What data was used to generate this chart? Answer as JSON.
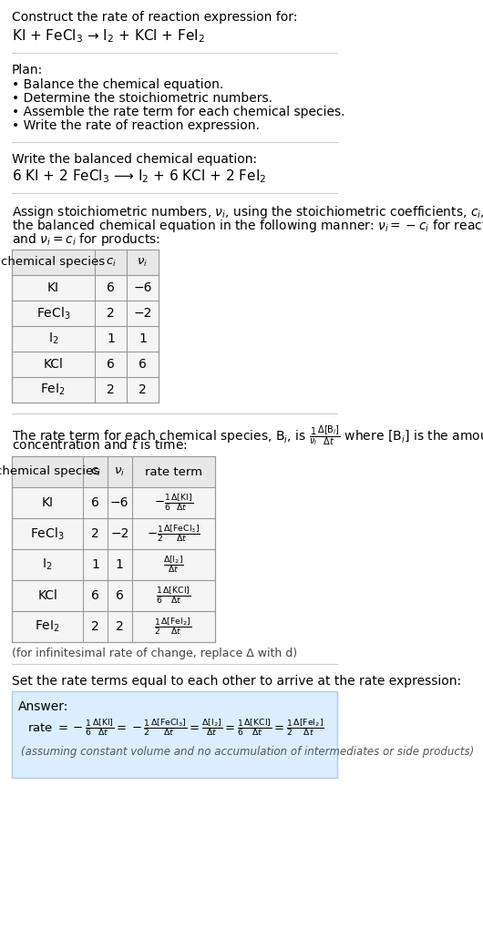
{
  "title_line1": "Construct the rate of reaction expression for:",
  "title_line2": "KI + FeCl$_3$ → I$_2$ + KCl + FeI$_2$",
  "plan_header": "Plan:",
  "plan_items": [
    "• Balance the chemical equation.",
    "• Determine the stoichiometric numbers.",
    "• Assemble the rate term for each chemical species.",
    "• Write the rate of reaction expression."
  ],
  "balanced_header": "Write the balanced chemical equation:",
  "balanced_eq": "6 KI + 2 FeCl$_3$ ⟶ I$_2$ + 6 KCl + 2 FeI$_2$",
  "stoich_intro": "Assign stoichiometric numbers, $\\nu_i$, using the stoichiometric coefficients, $c_i$, from\nthe balanced chemical equation in the following manner: $\\nu_i = -c_i$ for reactants\nand $\\nu_i = c_i$ for products:",
  "table1_headers": [
    "chemical species",
    "$c_i$",
    "$\\nu_i$"
  ],
  "table1_rows": [
    [
      "KI",
      "6",
      "−6"
    ],
    [
      "FeCl$_3$",
      "2",
      "−2"
    ],
    [
      "I$_2$",
      "1",
      "1"
    ],
    [
      "KCl",
      "6",
      "6"
    ],
    [
      "FeI$_2$",
      "2",
      "2"
    ]
  ],
  "rate_term_intro": "The rate term for each chemical species, B$_i$, is $\\frac{1}{\\nu_i}\\frac{\\Delta[\\mathrm{B}_i]}{\\Delta t}$ where [B$_i$] is the amount\nconcentration and $t$ is time:",
  "table2_headers": [
    "chemical species",
    "$c_i$",
    "$\\nu_i$",
    "rate term"
  ],
  "table2_rows": [
    [
      "KI",
      "6",
      "−6",
      "$-\\frac{1}{6}\\frac{\\Delta[\\mathrm{KI}]}{\\Delta t}$"
    ],
    [
      "FeCl$_3$",
      "2",
      "−2",
      "$-\\frac{1}{2}\\frac{\\Delta[\\mathrm{FeCl_3}]}{\\Delta t}$"
    ],
    [
      "I$_2$",
      "1",
      "1",
      "$\\frac{\\Delta[\\mathrm{I_2}]}{\\Delta t}$"
    ],
    [
      "KCl",
      "6",
      "6",
      "$\\frac{1}{6}\\frac{\\Delta[\\mathrm{KCl}]}{\\Delta t}$"
    ],
    [
      "FeI$_2$",
      "2",
      "2",
      "$\\frac{1}{2}\\frac{\\Delta[\\mathrm{FeI_2}]}{\\Delta t}$"
    ]
  ],
  "infinitesimal_note": "(for infinitesimal rate of change, replace Δ with d)",
  "set_equal_text": "Set the rate terms equal to each other to arrive at the rate expression:",
  "answer_box_color": "#dbeeff",
  "answer_label": "Answer:",
  "answer_formula": "rate $= -\\frac{1}{6}\\frac{\\Delta[\\mathrm{KI}]}{\\Delta t} = -\\frac{1}{2}\\frac{\\Delta[\\mathrm{FeCl_3}]}{\\Delta t} = \\frac{\\Delta[\\mathrm{I_2}]}{\\Delta t} = \\frac{1}{6}\\frac{\\Delta[\\mathrm{KCl}]}{\\Delta t} = \\frac{1}{2}\\frac{\\Delta[\\mathrm{FeI_2}]}{\\Delta t}$",
  "answer_note": "(assuming constant volume and no accumulation of intermediates or side products)",
  "bg_color": "#ffffff",
  "text_color": "#000000",
  "table_border_color": "#aaaaaa",
  "section_line_color": "#cccccc"
}
